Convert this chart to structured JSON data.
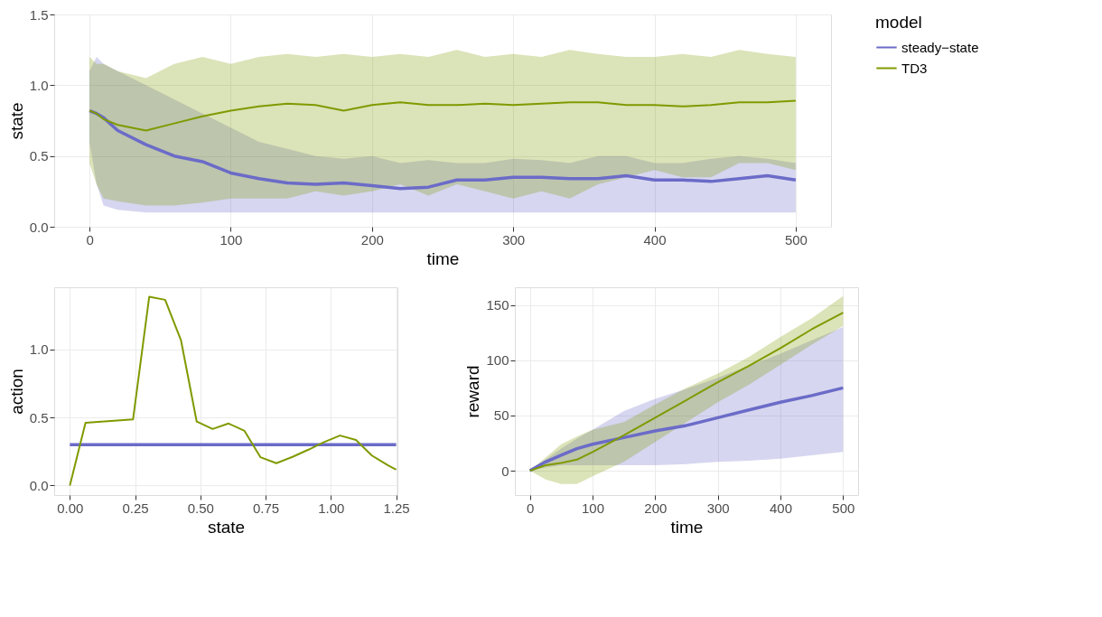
{
  "chart_data": [
    {
      "type": "line",
      "xlabel": "time",
      "ylabel": "state",
      "legend_title": "model",
      "legend": "right",
      "grid": true,
      "x": [
        0,
        5,
        10,
        20,
        40,
        60,
        80,
        100,
        120,
        140,
        160,
        180,
        200,
        220,
        240,
        260,
        280,
        300,
        320,
        340,
        360,
        380,
        400,
        420,
        440,
        460,
        480,
        500
      ],
      "xlim": [
        -25,
        525
      ],
      "xticks": [
        0,
        100,
        200,
        300,
        400,
        500
      ],
      "ylim": [
        0,
        1.5
      ],
      "yticks": [
        {
          "value": 0,
          "label": "0.0"
        },
        {
          "value": 0.5,
          "label": "0.5"
        },
        {
          "value": 1,
          "label": "1.0"
        },
        {
          "value": 1.5,
          "label": "1.5"
        }
      ],
      "series": [
        {
          "name": "steady−state",
          "color": "#6b6bc8",
          "values": [
            0.82,
            0.8,
            0.77,
            0.68,
            0.58,
            0.5,
            0.46,
            0.38,
            0.34,
            0.31,
            0.3,
            0.31,
            0.29,
            0.27,
            0.28,
            0.33,
            0.33,
            0.35,
            0.35,
            0.34,
            0.34,
            0.36,
            0.33,
            0.33,
            0.32,
            0.34,
            0.36,
            0.33
          ],
          "lower": [
            0.6,
            0.3,
            0.15,
            0.12,
            0.1,
            0.1,
            0.1,
            0.1,
            0.1,
            0.1,
            0.1,
            0.1,
            0.1,
            0.1,
            0.1,
            0.1,
            0.1,
            0.1,
            0.1,
            0.1,
            0.1,
            0.1,
            0.1,
            0.1,
            0.1,
            0.1,
            0.1,
            0.1
          ],
          "upper": [
            1.1,
            1.2,
            1.15,
            1.1,
            1.0,
            0.9,
            0.8,
            0.7,
            0.6,
            0.55,
            0.5,
            0.48,
            0.5,
            0.45,
            0.47,
            0.45,
            0.45,
            0.48,
            0.47,
            0.45,
            0.5,
            0.5,
            0.45,
            0.45,
            0.48,
            0.5,
            0.48,
            0.45
          ]
        },
        {
          "name": "TD3",
          "color": "#7f9a00",
          "values": [
            0.82,
            0.8,
            0.76,
            0.72,
            0.68,
            0.73,
            0.78,
            0.82,
            0.85,
            0.87,
            0.86,
            0.82,
            0.86,
            0.88,
            0.86,
            0.86,
            0.87,
            0.86,
            0.87,
            0.88,
            0.88,
            0.86,
            0.86,
            0.85,
            0.86,
            0.88,
            0.88,
            0.89
          ],
          "lower": [
            0.45,
            0.3,
            0.2,
            0.18,
            0.15,
            0.15,
            0.17,
            0.2,
            0.2,
            0.2,
            0.25,
            0.22,
            0.25,
            0.3,
            0.22,
            0.3,
            0.25,
            0.2,
            0.25,
            0.2,
            0.3,
            0.35,
            0.4,
            0.35,
            0.35,
            0.45,
            0.45,
            0.4
          ],
          "upper": [
            1.2,
            1.15,
            1.15,
            1.1,
            1.05,
            1.15,
            1.2,
            1.15,
            1.2,
            1.22,
            1.2,
            1.22,
            1.2,
            1.22,
            1.2,
            1.25,
            1.2,
            1.22,
            1.2,
            1.25,
            1.22,
            1.2,
            1.2,
            1.22,
            1.2,
            1.25,
            1.22,
            1.2
          ]
        }
      ]
    },
    {
      "type": "line",
      "xlabel": "state",
      "ylabel": "action",
      "grid": true,
      "xlim": [
        -0.06,
        1.255
      ],
      "xticks": [
        {
          "value": 0,
          "label": "0.00"
        },
        {
          "value": 0.25,
          "label": "0.25"
        },
        {
          "value": 0.5,
          "label": "0.50"
        },
        {
          "value": 0.75,
          "label": "0.75"
        },
        {
          "value": 1,
          "label": "1.00"
        },
        {
          "value": 1.25,
          "label": "1.25"
        }
      ],
      "ylim": [
        -0.07,
        1.455
      ],
      "yticks": [
        {
          "value": 0,
          "label": "0.0"
        },
        {
          "value": 0.5,
          "label": "0.5"
        },
        {
          "value": 1,
          "label": "1.0"
        }
      ],
      "series": [
        {
          "color": "#6b6bc8",
          "x": [
            0,
            1.25
          ],
          "values": [
            0.3,
            0.3
          ]
        },
        {
          "color": "#7f9a00",
          "x": [
            0,
            0.06,
            0.242,
            0.304,
            0.365,
            0.426,
            0.486,
            0.547,
            0.608,
            0.669,
            0.73,
            0.791,
            0.853,
            0.914,
            0.974,
            1.035,
            1.096,
            1.157,
            1.219,
            1.25
          ],
          "values": [
            0.0,
            0.46,
            0.485,
            1.385,
            1.363,
            1.064,
            0.469,
            0.415,
            0.455,
            0.401,
            0.208,
            0.164,
            0.21,
            0.263,
            0.319,
            0.367,
            0.335,
            0.22,
            0.148,
            0.116
          ]
        }
      ]
    },
    {
      "type": "line",
      "xlabel": "time",
      "ylabel": "reward",
      "grid": true,
      "x": [
        0,
        25,
        50,
        75,
        100,
        150,
        200,
        250,
        300,
        350,
        400,
        450,
        500
      ],
      "xlim": [
        -24,
        524
      ],
      "xticks": [
        0,
        100,
        200,
        300,
        400,
        500
      ],
      "ylim": [
        -22,
        166
      ],
      "yticks": [
        0,
        50,
        100,
        150
      ],
      "series": [
        {
          "color": "#6b6bc8",
          "values": [
            0,
            8,
            14,
            20,
            24,
            30,
            36,
            41,
            48,
            55,
            62,
            68,
            75
          ],
          "lower": [
            0,
            3,
            5,
            5,
            5,
            5,
            5,
            6,
            8,
            9,
            11,
            14,
            17
          ],
          "upper": [
            0,
            10,
            20,
            29,
            37,
            54,
            65,
            74,
            84,
            95,
            106,
            118,
            130
          ]
        },
        {
          "color": "#7f9a00",
          "values": [
            0,
            5,
            7,
            10,
            17,
            32,
            48,
            64,
            80,
            95,
            111,
            128,
            143
          ],
          "lower": [
            0,
            -8,
            -12,
            -12,
            -5,
            8,
            26,
            44,
            62,
            78,
            96,
            114,
            131
          ],
          "upper": [
            0,
            12,
            24,
            31,
            37,
            44,
            60,
            75,
            88,
            103,
            121,
            138,
            158
          ]
        }
      ]
    }
  ]
}
